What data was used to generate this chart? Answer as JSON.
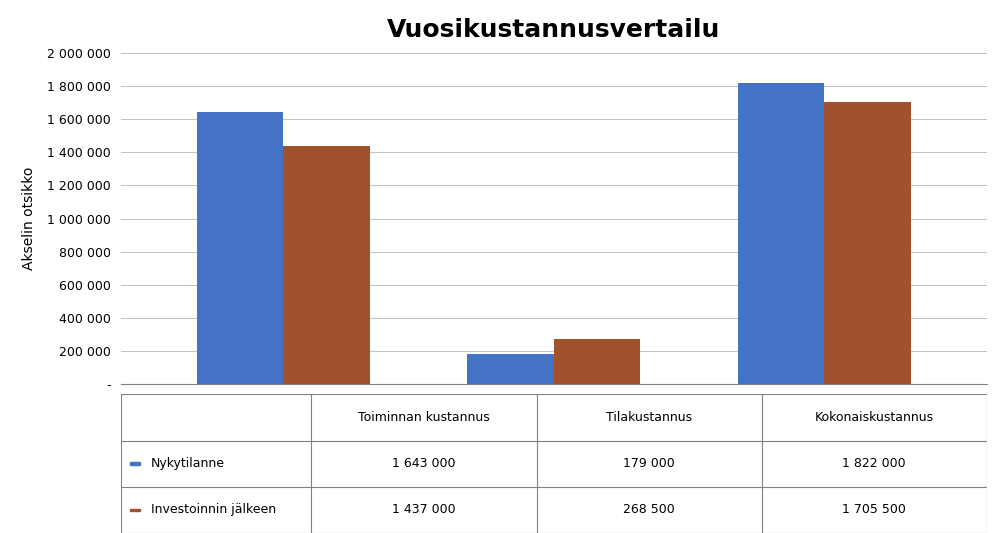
{
  "title": "Vuosikustannusvertailu",
  "categories": [
    "Toiminnan kustannus",
    "Tilakustannus",
    "Kokonaiskustannus"
  ],
  "series": [
    {
      "label": "Nykytilanne",
      "color": "#4472C4",
      "values": [
        1643000,
        179000,
        1822000
      ]
    },
    {
      "label": "Investoinnin jälkeen",
      "color": "#A0522D",
      "values": [
        1437000,
        268500,
        1705500
      ]
    }
  ],
  "ylabel": "Akselin otsikko",
  "ylim": [
    0,
    2000000
  ],
  "yticks": [
    0,
    200000,
    400000,
    600000,
    800000,
    1000000,
    1200000,
    1400000,
    1600000,
    1800000,
    2000000
  ],
  "ytick_labels": [
    "-",
    "200 000",
    "400 000",
    "600 000",
    "800 000",
    "1 000 000",
    "1 200 000",
    "1 400 000",
    "1 600 000",
    "1 800 000",
    "2 000 000"
  ],
  "table_values": [
    [
      "1 643 000",
      "179 000",
      "1 822 000"
    ],
    [
      "1 437 000",
      "268 500",
      "1 705 500"
    ]
  ],
  "legend_colors": [
    "#4472C4",
    "#A0522D"
  ],
  "legend_labels": [
    "Nykytilanne",
    "Investoinnin jälkeen"
  ],
  "background_color": "#FFFFFF",
  "plot_bg_color": "#FFFFFF",
  "grid_color": "#C0C0C0",
  "bar_width": 0.32
}
